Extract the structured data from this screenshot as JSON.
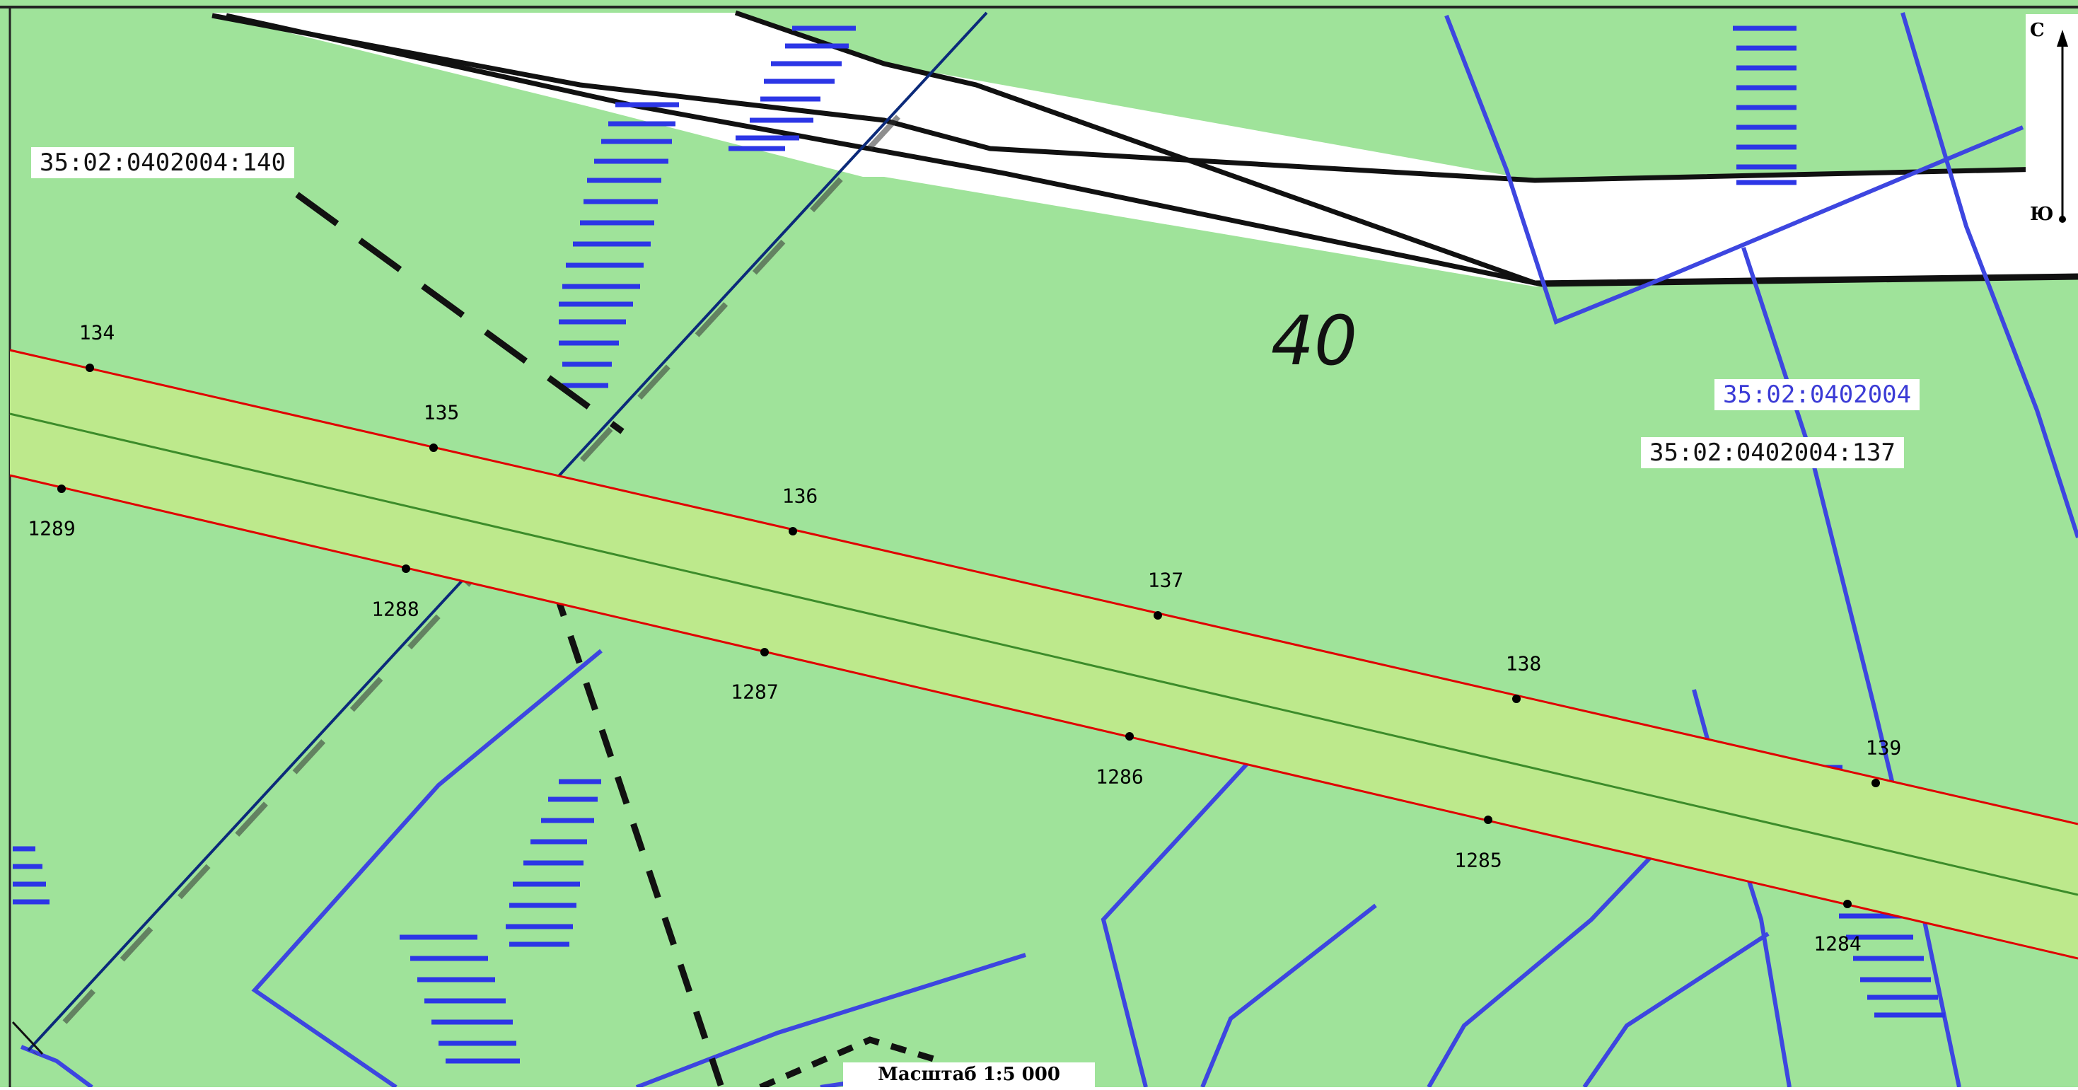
{
  "map": {
    "area_number": "40",
    "parcel_labels": [
      {
        "id": "parcel-140",
        "text": "35:02:0402004:140",
        "color": "#111111"
      },
      {
        "id": "quarter",
        "text": "35:02:0402004",
        "color": "#3b3bd6"
      },
      {
        "id": "parcel-137",
        "text": "35:02:0402004:137",
        "color": "#111111"
      }
    ],
    "scale_label": "Масштаб 1:5 000",
    "compass": {
      "north": "С",
      "south": "Ю"
    },
    "points_top": [
      "134",
      "135",
      "136",
      "137",
      "138",
      "139"
    ],
    "points_bottom": [
      "1289",
      "1288",
      "1287",
      "1286",
      "1285",
      "1284"
    ],
    "colors": {
      "background": "#9fe39a",
      "corridor_fill": "#bde98c",
      "boundary": "#e00000",
      "centerline": "#3c8c2a",
      "water": "#3d46e0",
      "road": "#ffffff"
    }
  }
}
